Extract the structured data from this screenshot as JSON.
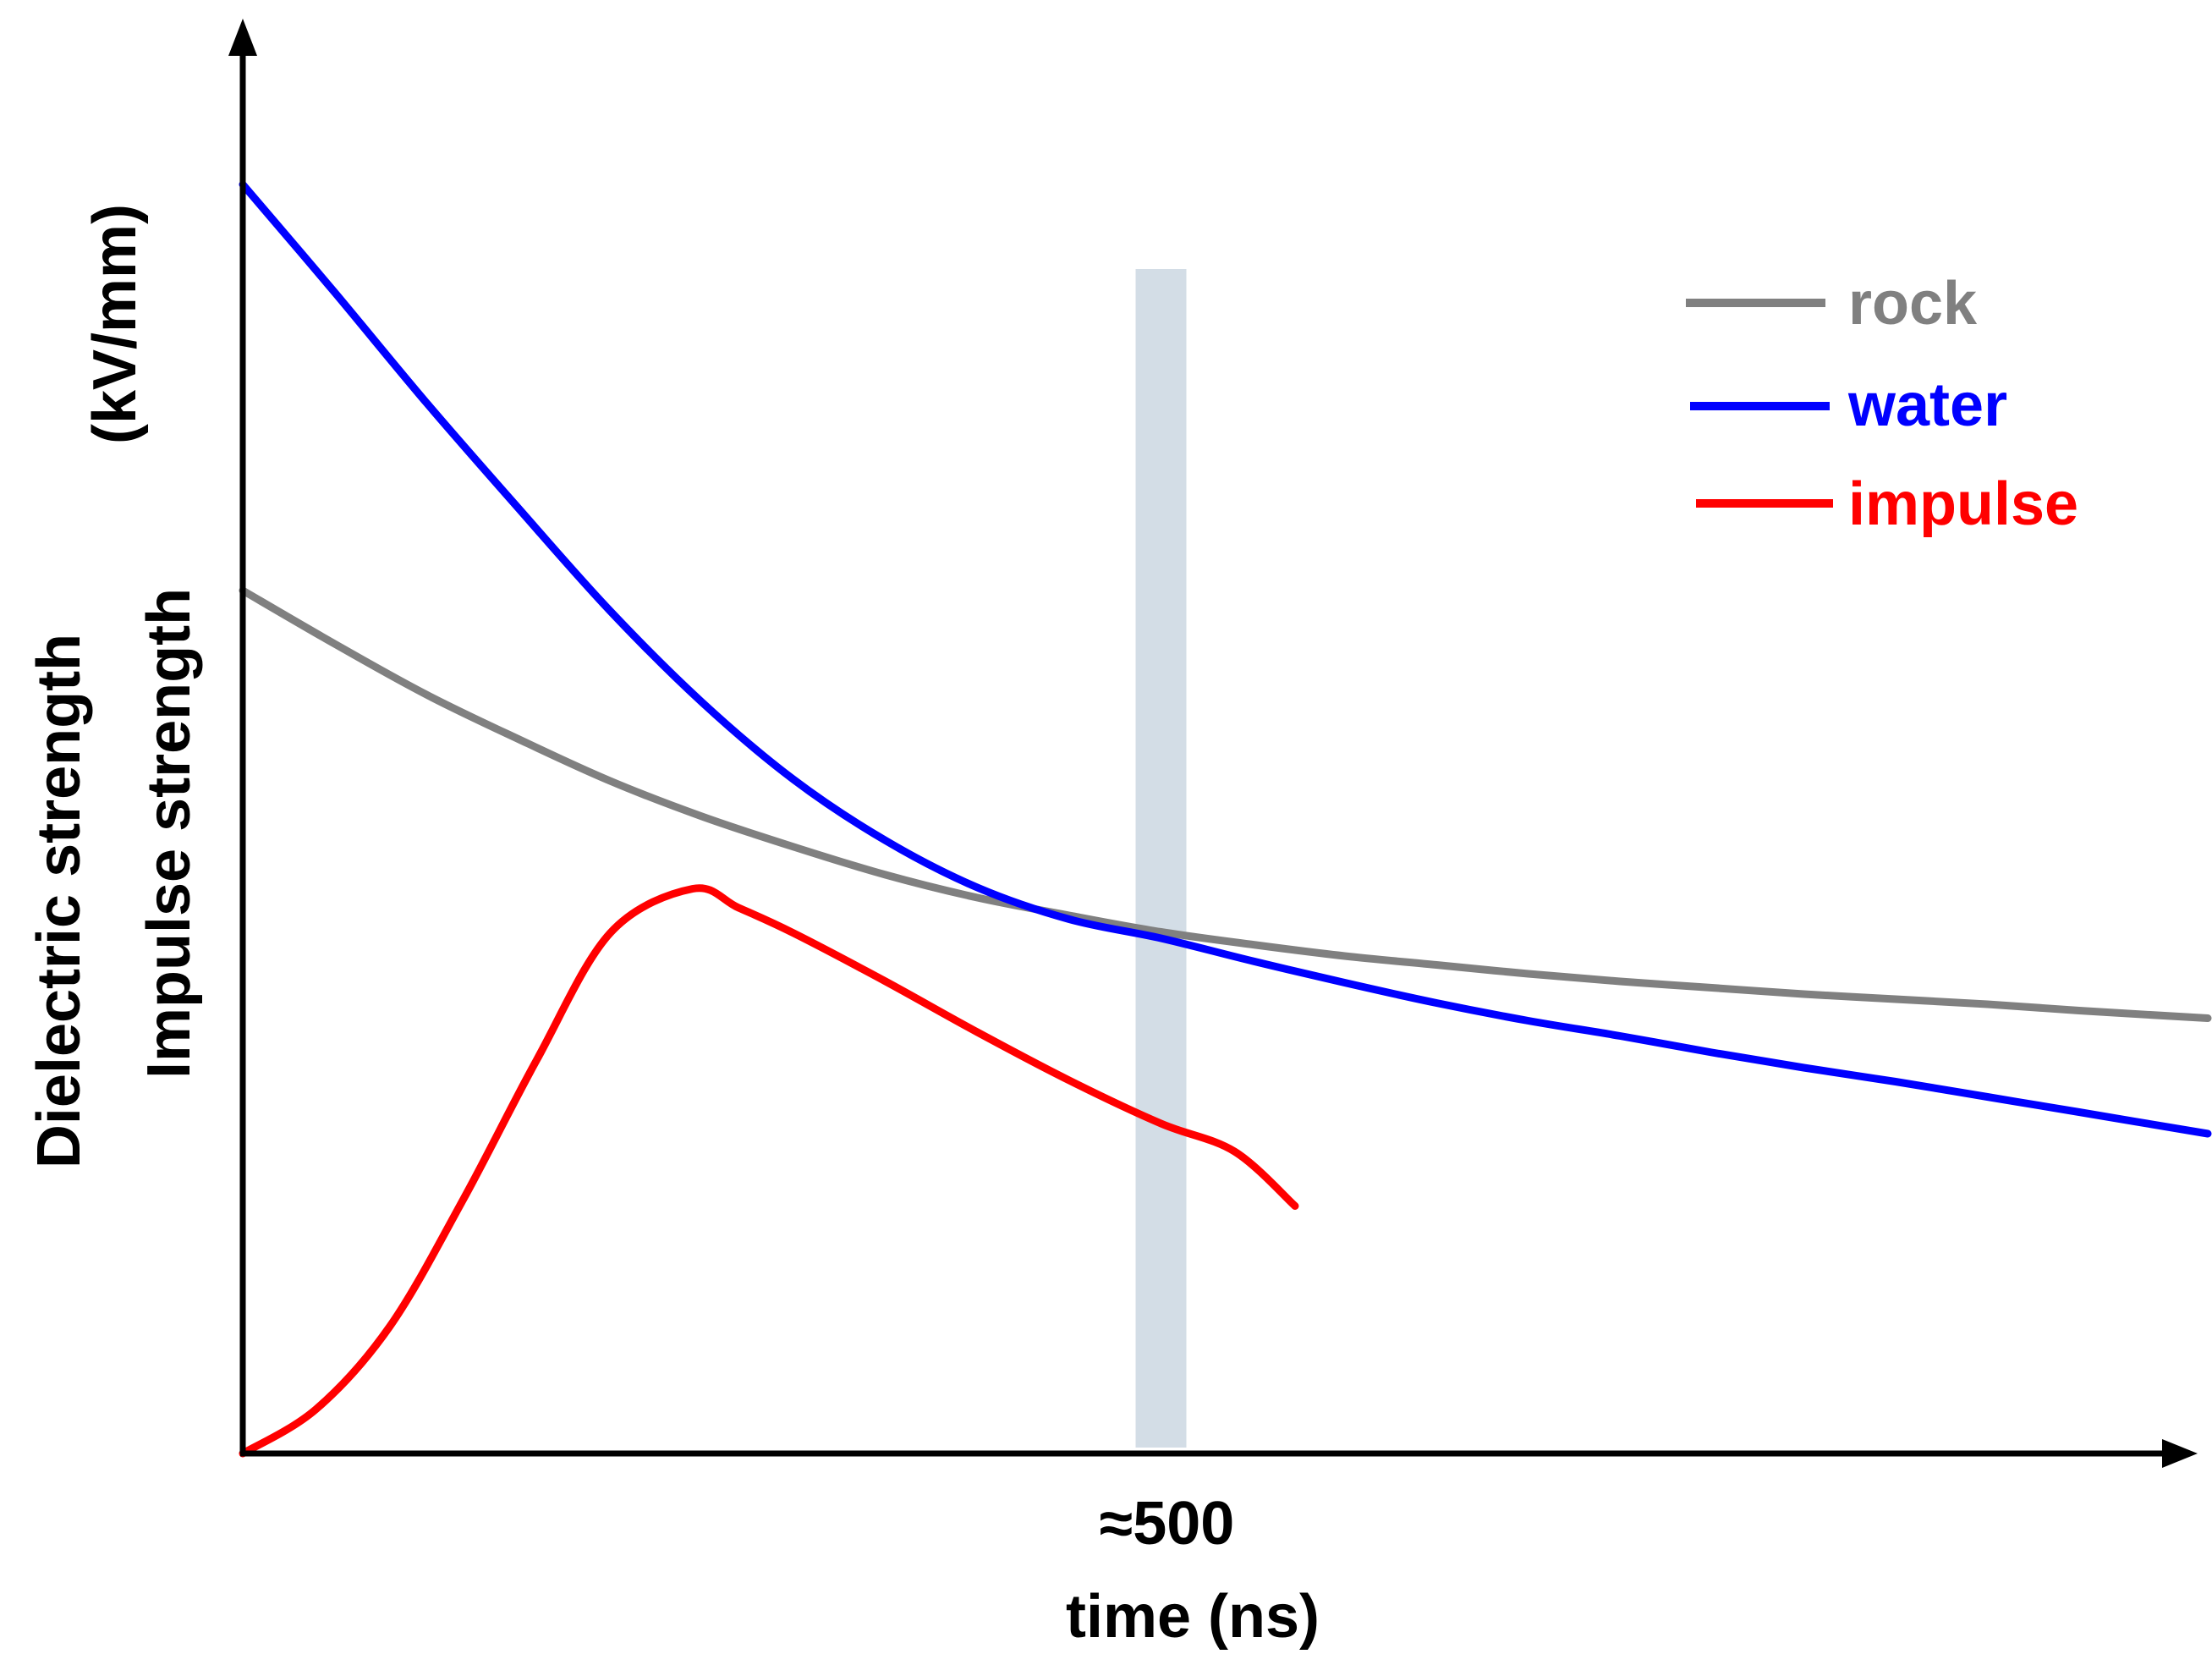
{
  "chart_data": {
    "type": "line",
    "title": "",
    "xlabel": "time (ns)",
    "ylabel": "Dielectric strength",
    "ylabel2": "Impulse strength",
    "ylabel_unit": "(kV/mm)",
    "x_unit": "ns",
    "xlim": [
      0,
      1070
    ],
    "ylim": [
      0,
      100
    ],
    "grid": false,
    "highlight": {
      "x": 500,
      "label": "≈500",
      "color": "#d3dde6"
    },
    "legend": {
      "position": "top-right"
    },
    "series": [
      {
        "name": "rock",
        "color": "#808080",
        "x": [
          0,
          50,
          100,
          150,
          200,
          250,
          300,
          350,
          400,
          450,
          500,
          550,
          600,
          650,
          700,
          750,
          800,
          850,
          900,
          950,
          1000,
          1070
        ],
        "y": [
          68,
          63.8,
          59.8,
          56.3,
          53,
          50.2,
          47.8,
          45.6,
          43.8,
          42.4,
          41.1,
          40.1,
          39.2,
          38.5,
          37.8,
          37.2,
          36.7,
          36.2,
          35.8,
          35.4,
          34.9,
          34.3
        ]
      },
      {
        "name": "water",
        "color": "#0000ff",
        "x": [
          0,
          50,
          100,
          150,
          200,
          250,
          300,
          350,
          400,
          450,
          500,
          550,
          600,
          650,
          700,
          750,
          800,
          850,
          900,
          950,
          1000,
          1070
        ],
        "y": [
          100,
          91.5,
          82.8,
          74.5,
          66.4,
          59.2,
          53.1,
          48.3,
          44.6,
          42.1,
          40.6,
          38.8,
          37.1,
          35.5,
          34.1,
          32.9,
          31.6,
          30.4,
          29.3,
          28.1,
          26.9,
          25.2
        ]
      },
      {
        "name": "impulse",
        "color": "#ff0000",
        "x": [
          0,
          40,
          80,
          120,
          160,
          200,
          245,
          270,
          300,
          350,
          400,
          450,
          500,
          540,
          573
        ],
        "y": [
          0,
          3.5,
          10,
          20,
          31,
          41,
          44.5,
          43,
          41,
          37.2,
          33.2,
          29.4,
          26,
          23.8,
          19.5
        ]
      }
    ]
  }
}
